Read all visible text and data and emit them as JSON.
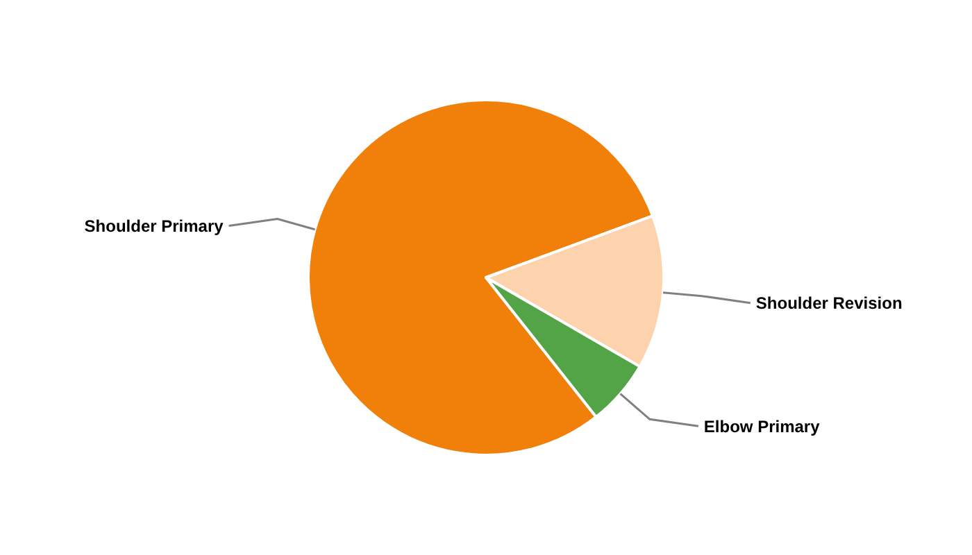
{
  "chart_data": {
    "type": "pie",
    "categories": [
      "Shoulder Primary",
      "Shoulder Revision",
      "Elbow Primary"
    ],
    "values": [
      80,
      14,
      6
    ],
    "colors": [
      "#f0800a",
      "#fcd3ad",
      "#52a447"
    ]
  }
}
